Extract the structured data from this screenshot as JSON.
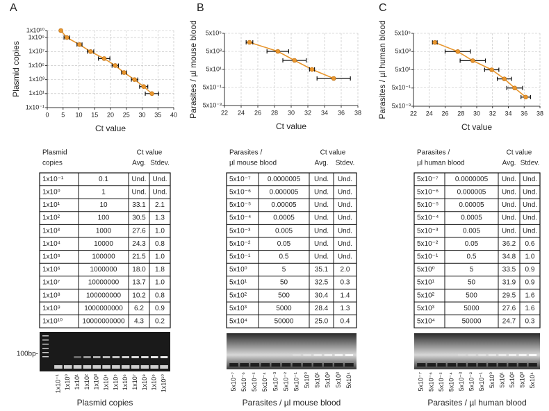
{
  "panel_labels": [
    "A",
    "B",
    "C"
  ],
  "chart_data": [
    {
      "type": "scatter",
      "y_label": "Plasmid copies",
      "x_label": "Ct value",
      "ylog": true,
      "grid": true,
      "color": "#e8962e",
      "xlim": [
        0,
        40
      ],
      "xticks": [
        0,
        5,
        10,
        15,
        20,
        25,
        30,
        35,
        40
      ],
      "ylim": [
        0.1,
        10000000000
      ],
      "yticks": [
        {
          "value": 0.1,
          "label": "1x10⁻¹"
        },
        {
          "value": 10,
          "label": "1x10¹"
        },
        {
          "value": 1000,
          "label": "1x10³"
        },
        {
          "value": 100000,
          "label": "1x10⁵"
        },
        {
          "value": 10000000,
          "label": "1x10⁷"
        },
        {
          "value": 1000000000,
          "label": "1x10⁹"
        },
        {
          "value": 10000000000,
          "label": "1x10¹⁰"
        }
      ],
      "x": [
        33.1,
        30.5,
        27.6,
        24.3,
        21.5,
        18.0,
        13.7,
        10.2,
        6.2,
        4.3
      ],
      "values": [
        10,
        100,
        1000,
        10000,
        100000,
        1000000,
        10000000,
        100000000,
        1000000000,
        10000000000
      ],
      "x_errors": [
        2.1,
        1.3,
        1.0,
        0.8,
        1.0,
        1.8,
        1.0,
        0.8,
        0.9,
        0.2
      ]
    },
    {
      "type": "scatter",
      "y_label": "Parasites / µl mouse blood",
      "x_label": "Ct value",
      "ylog": true,
      "grid": true,
      "color": "#e8962e",
      "xlim": [
        22,
        38
      ],
      "xticks": [
        22,
        24,
        26,
        28,
        30,
        32,
        34,
        36,
        38
      ],
      "ylim": [
        0.005,
        500000
      ],
      "yticks": [
        {
          "value": 0.005,
          "label": "5x10⁻³"
        },
        {
          "value": 0.5,
          "label": "5x10⁻¹"
        },
        {
          "value": 50,
          "label": "5x10¹"
        },
        {
          "value": 5000,
          "label": "5x10³"
        },
        {
          "value": 500000,
          "label": "5x10⁵"
        }
      ],
      "x": [
        35.1,
        32.5,
        30.4,
        28.4,
        25.0
      ],
      "values": [
        5,
        50,
        500,
        5000,
        50000
      ],
      "x_errors": [
        2.0,
        0.3,
        1.4,
        1.3,
        0.4
      ]
    },
    {
      "type": "scatter",
      "y_label": "Parasites / µl human blood",
      "x_label": "Ct value",
      "ylog": true,
      "grid": true,
      "color": "#e8962e",
      "xlim": [
        22,
        38
      ],
      "xticks": [
        22,
        24,
        26,
        28,
        30,
        32,
        34,
        36,
        38
      ],
      "ylim": [
        0.005,
        500000
      ],
      "yticks": [
        {
          "value": 0.005,
          "label": "5x10⁻³"
        },
        {
          "value": 0.5,
          "label": "5x10⁻¹"
        },
        {
          "value": 50,
          "label": "5x10¹"
        },
        {
          "value": 5000,
          "label": "5x10³"
        },
        {
          "value": 500000,
          "label": "5x10⁵"
        }
      ],
      "x": [
        36.2,
        34.8,
        33.5,
        31.9,
        29.5,
        27.6,
        24.7
      ],
      "values": [
        0.05,
        0.5,
        5,
        50,
        500,
        5000,
        50000
      ],
      "x_errors": [
        0.6,
        1.0,
        0.9,
        0.9,
        1.6,
        1.6,
        0.3
      ]
    }
  ],
  "tables": [
    {
      "header_lines": [
        "Plasmid",
        "copies"
      ],
      "group": "Ct value",
      "columns": [
        "Avg.",
        "Stdev."
      ],
      "rows": [
        [
          "1x10⁻¹",
          "0.1",
          "Und.",
          "Und."
        ],
        [
          "1x10⁰",
          "1",
          "Und.",
          "Und."
        ],
        [
          "1x10¹",
          "10",
          "33.1",
          "2.1"
        ],
        [
          "1x10²",
          "100",
          "30.5",
          "1.3"
        ],
        [
          "1x10³",
          "1000",
          "27.6",
          "1.0"
        ],
        [
          "1x10⁴",
          "10000",
          "24.3",
          "0.8"
        ],
        [
          "1x10⁵",
          "100000",
          "21.5",
          "1.0"
        ],
        [
          "1x10⁶",
          "1000000",
          "18.0",
          "1.8"
        ],
        [
          "1x10⁷",
          "10000000",
          "13.7",
          "1.0"
        ],
        [
          "1x10⁸",
          "100000000",
          "10.2",
          "0.8"
        ],
        [
          "1x10⁹",
          "1000000000",
          "6.2",
          "0.9"
        ],
        [
          "1x10¹⁰",
          "10000000000",
          "4.3",
          "0.2"
        ]
      ]
    },
    {
      "header_lines": [
        "Parasites /",
        "µl mouse blood"
      ],
      "group": "Ct value",
      "columns": [
        "Avg.",
        "Stdev."
      ],
      "rows": [
        [
          "5x10⁻⁷",
          "0.0000005",
          "Und.",
          "Und."
        ],
        [
          "5x10⁻⁶",
          "0.000005",
          "Und.",
          "Und."
        ],
        [
          "5x10⁻⁵",
          "0.00005",
          "Und.",
          "Und."
        ],
        [
          "5x10⁻⁴",
          "0.0005",
          "Und.",
          "Und."
        ],
        [
          "5x10⁻³",
          "0.005",
          "Und.",
          "Und."
        ],
        [
          "5x10⁻²",
          "0.05",
          "Und.",
          "Und."
        ],
        [
          "5x10⁻¹",
          "0.5",
          "Und.",
          "Und."
        ],
        [
          "5x10⁰",
          "5",
          "35.1",
          "2.0"
        ],
        [
          "5x10¹",
          "50",
          "32.5",
          "0.3"
        ],
        [
          "5x10²",
          "500",
          "30.4",
          "1.4"
        ],
        [
          "5x10³",
          "5000",
          "28.4",
          "1.3"
        ],
        [
          "5x10⁴",
          "50000",
          "25.0",
          "0.4"
        ]
      ]
    },
    {
      "header_lines": [
        "Parasites /",
        "µl human blood"
      ],
      "group": "Ct value",
      "columns": [
        "Avg.",
        "Stdev."
      ],
      "rows": [
        [
          "5x10⁻⁷",
          "0.0000005",
          "Und.",
          "Und."
        ],
        [
          "5x10⁻⁶",
          "0.000005",
          "Und.",
          "Und."
        ],
        [
          "5x10⁻⁵",
          "0.00005",
          "Und.",
          "Und."
        ],
        [
          "5x10⁻⁴",
          "0.0005",
          "Und.",
          "Und."
        ],
        [
          "5x10⁻³",
          "0.005",
          "Und.",
          "Und."
        ],
        [
          "5x10⁻²",
          "0.05",
          "36.2",
          "0.6"
        ],
        [
          "5x10⁻¹",
          "0.5",
          "34.8",
          "1.0"
        ],
        [
          "5x10⁰",
          "5",
          "33.5",
          "0.9"
        ],
        [
          "5x10¹",
          "50",
          "31.9",
          "0.9"
        ],
        [
          "5x10²",
          "500",
          "29.5",
          "1.6"
        ],
        [
          "5x10³",
          "5000",
          "27.6",
          "1.6"
        ],
        [
          "5x10⁴",
          "50000",
          "24.7",
          "0.3"
        ]
      ]
    }
  ],
  "gels": [
    {
      "marker_label": "100bp-",
      "x_label": "Plasmid copies",
      "lanes": [
        "1x10⁻¹",
        "1x10⁰",
        "1x10¹",
        "1x10²",
        "1x10³",
        "1x10⁴",
        "1x10⁵",
        "1x10⁶",
        "1x10⁷",
        "1x10⁸",
        "1x10⁹",
        "1x10¹⁰"
      ]
    },
    {
      "x_label": "Parasites / µl mouse blood",
      "lanes": [
        "5x10⁻⁷",
        "5x10⁻⁶",
        "5x10⁻⁵",
        "5x10⁻⁴",
        "5x10⁻³",
        "5x10⁻²",
        "5x10⁻¹",
        "5x10⁰",
        "5x10¹",
        "5x10²",
        "5x10³",
        "5x10⁴"
      ]
    },
    {
      "x_label": "Parasites / µl human blood",
      "lanes": [
        "5x10⁻⁷",
        "5x10⁻⁶",
        "5x10⁻⁵",
        "5x10⁻⁴",
        "5x10⁻³",
        "5x10⁻²",
        "5x10⁻¹",
        "5x10⁰",
        "5x10¹",
        "5x10²",
        "5x10³",
        "5x10⁴"
      ]
    }
  ]
}
